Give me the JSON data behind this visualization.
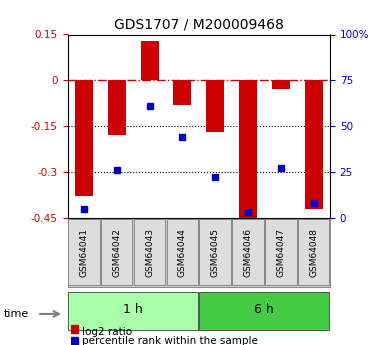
{
  "title": "GDS1707 / M200009468",
  "samples": [
    "GSM64041",
    "GSM64042",
    "GSM64043",
    "GSM64044",
    "GSM64045",
    "GSM64046",
    "GSM64047",
    "GSM64048"
  ],
  "log2_ratio": [
    -0.38,
    -0.18,
    0.13,
    -0.08,
    -0.17,
    -0.46,
    -0.03,
    -0.42
  ],
  "percentile_rank": [
    5,
    26,
    61,
    44,
    22,
    3,
    27,
    8
  ],
  "groups": [
    {
      "label": "1 h",
      "samples": [
        0,
        1,
        2,
        3
      ],
      "color": "#aaffaa"
    },
    {
      "label": "6 h",
      "samples": [
        4,
        5,
        6,
        7
      ],
      "color": "#44cc44"
    }
  ],
  "ylim_left": [
    -0.45,
    0.15
  ],
  "ylim_right": [
    0,
    100
  ],
  "bar_color": "#cc0000",
  "dot_color": "#0000cc",
  "hline_zero_color": "#cc0000",
  "hline_dotted_color": "#000000",
  "bg_color": "#ffffff",
  "plot_bg_color": "#ffffff",
  "left_tick_color": "#cc0000",
  "right_tick_color": "#0000cc",
  "right_ticks": [
    0,
    25,
    50,
    75,
    100
  ],
  "right_tick_labels": [
    "0",
    "25",
    "50",
    "75",
    "100%"
  ],
  "left_ticks": [
    -0.45,
    -0.3,
    -0.15,
    0,
    0.15
  ],
  "left_tick_labels": [
    "-0.45",
    "-0.3",
    "-0.15",
    "0",
    "0.15"
  ],
  "legend_log2": "log2 ratio",
  "legend_pct": "percentile rank within the sample",
  "time_label": "time",
  "bar_width": 0.55
}
